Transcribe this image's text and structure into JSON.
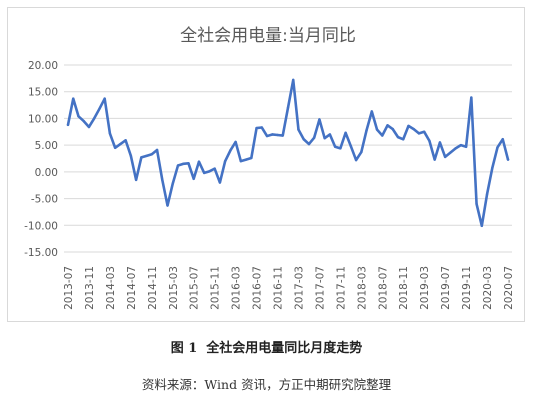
{
  "chart_data": {
    "type": "line",
    "title": "全社会用电量:当月同比",
    "xlabel": "",
    "ylabel": "",
    "ylim": [
      -15,
      20
    ],
    "yticks": [
      "20.00",
      "15.00",
      "10.00",
      "5.00",
      "0.00",
      "-5.00",
      "-10.00",
      "-15.00"
    ],
    "ytick_values": [
      20,
      15,
      10,
      5,
      0,
      -5,
      -10,
      -15
    ],
    "grid": true,
    "legend": "none",
    "line_color": "#4472c4",
    "x": [
      "2013-07",
      "2013-08",
      "2013-09",
      "2013-10",
      "2013-11",
      "2013-12",
      "2014-01",
      "2014-02",
      "2014-03",
      "2014-04",
      "2014-05",
      "2014-06",
      "2014-07",
      "2014-08",
      "2014-09",
      "2014-10",
      "2014-11",
      "2014-12",
      "2015-01",
      "2015-02",
      "2015-03",
      "2015-04",
      "2015-05",
      "2015-06",
      "2015-07",
      "2015-08",
      "2015-09",
      "2015-10",
      "2015-11",
      "2015-12",
      "2016-01",
      "2016-02",
      "2016-03",
      "2016-04",
      "2016-05",
      "2016-06",
      "2016-07",
      "2016-08",
      "2016-09",
      "2016-10",
      "2016-11",
      "2016-12",
      "2017-01",
      "2017-02",
      "2017-03",
      "2017-04",
      "2017-05",
      "2017-06",
      "2017-07",
      "2017-08",
      "2017-09",
      "2017-10",
      "2017-11",
      "2017-12",
      "2018-01",
      "2018-02",
      "2018-03",
      "2018-04",
      "2018-05",
      "2018-06",
      "2018-07",
      "2018-08",
      "2018-09",
      "2018-10",
      "2018-11",
      "2018-12",
      "2019-01",
      "2019-02",
      "2019-03",
      "2019-04",
      "2019-05",
      "2019-06",
      "2019-07",
      "2019-08",
      "2019-09",
      "2019-10",
      "2019-11",
      "2019-12",
      "2020-01",
      "2020-02",
      "2020-03",
      "2020-04",
      "2020-05",
      "2020-06",
      "2020-07"
    ],
    "xticks": [
      "2013-07",
      "2013-11",
      "2014-03",
      "2014-07",
      "2014-11",
      "2015-03",
      "2015-07",
      "2015-11",
      "2016-03",
      "2016-07",
      "2016-11",
      "2017-03",
      "2017-07",
      "2017-11",
      "2018-03",
      "2018-07",
      "2018-11",
      "2019-03",
      "2019-07",
      "2019-11",
      "2020-03",
      "2020-07"
    ],
    "series": [
      {
        "values": [
          8.8,
          13.7,
          10.4,
          9.5,
          8.4,
          10.0,
          11.8,
          13.7,
          7.2,
          4.5,
          5.2,
          5.9,
          3.0,
          -1.5,
          2.7,
          3.0,
          3.3,
          4.1,
          -1.5,
          -6.3,
          -2.2,
          1.2,
          1.5,
          1.6,
          -1.3,
          1.9,
          -0.2,
          0.1,
          0.6,
          -2.0,
          2.0,
          4.0,
          5.6,
          2.0,
          2.3,
          2.6,
          8.2,
          8.3,
          6.7,
          7.0,
          6.9,
          6.8,
          12.0,
          17.2,
          7.9,
          6.1,
          5.2,
          6.4,
          9.8,
          6.3,
          7.0,
          4.7,
          4.4,
          7.3,
          4.8,
          2.2,
          3.7,
          7.8,
          11.3,
          7.9,
          6.8,
          8.7,
          8.0,
          6.5,
          6.1,
          8.6,
          8.0,
          7.2,
          7.5,
          5.8,
          2.3,
          5.5,
          2.8,
          3.6,
          4.4,
          5.0,
          4.7,
          13.9,
          -6.0,
          -10.1,
          -4.2,
          0.7,
          4.6,
          6.1,
          2.3
        ]
      }
    ]
  },
  "caption": "图 1  全社会用电量同比月度走势",
  "source_note": "资料来源：Wind 资讯，方正中期研究院整理"
}
